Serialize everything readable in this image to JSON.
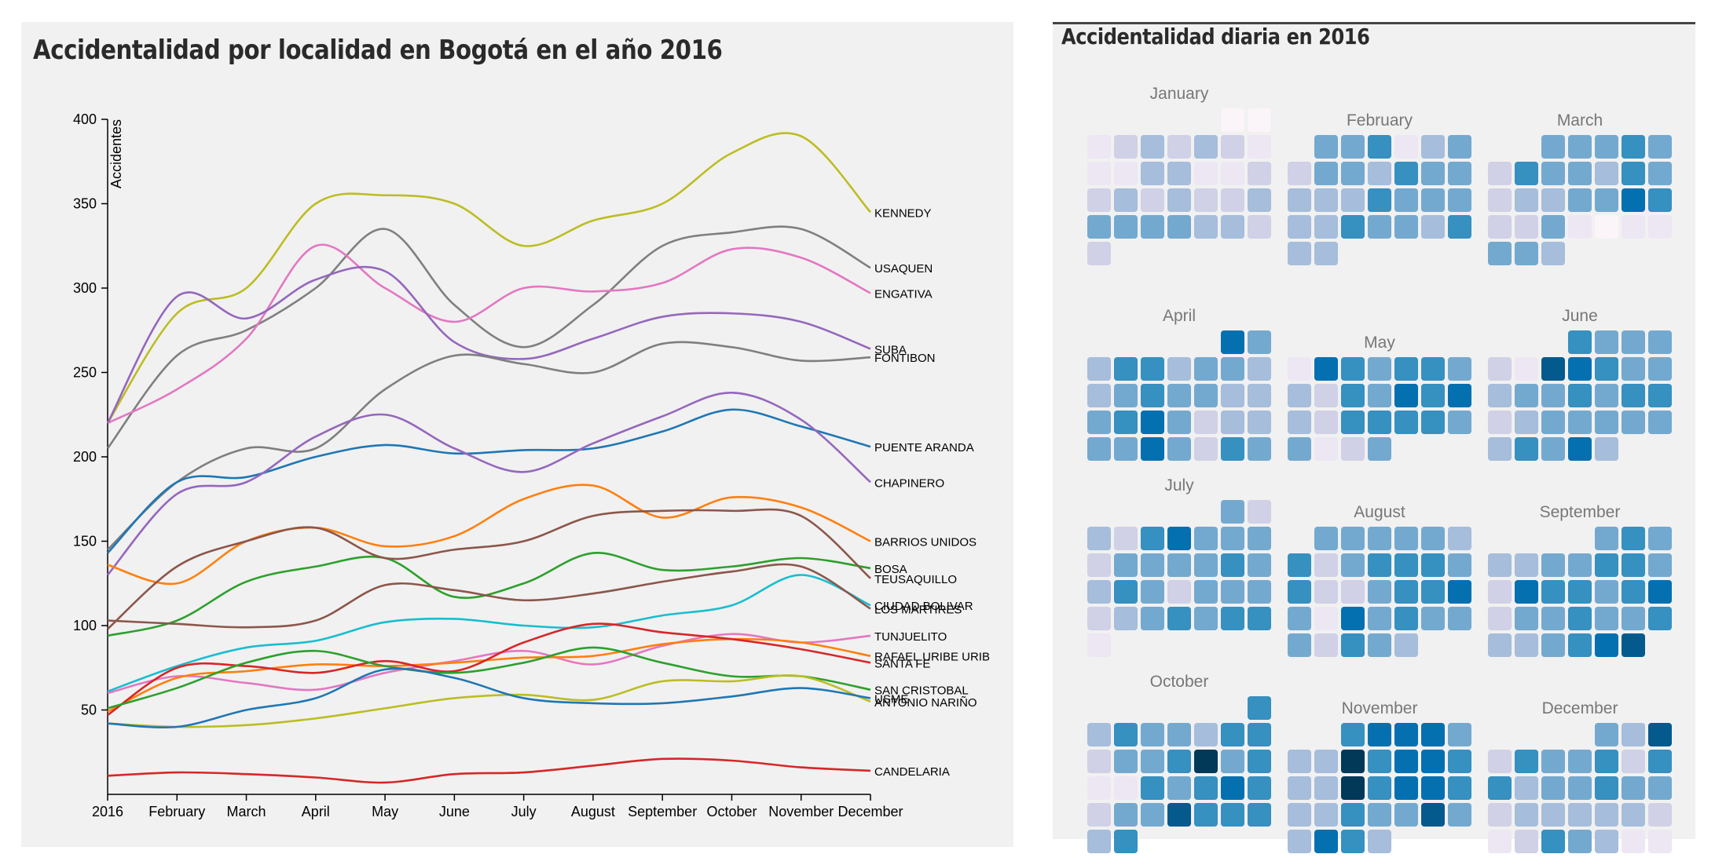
{
  "left_panel": {
    "title": "Accidentalidad por localidad en Bogotá en el año 2016"
  },
  "right_panel": {
    "title": "Accidentalidad diaria en 2016"
  },
  "chart_data": [
    {
      "type": "line",
      "title": "Accidentalidad por localidad en Bogotá en el año 2016",
      "ylabel": "Accidentes",
      "xlabel": "",
      "ylim": [
        0,
        400
      ],
      "yticks": [
        50,
        100,
        150,
        200,
        250,
        300,
        350,
        400
      ],
      "categories": [
        "2016",
        "February",
        "March",
        "April",
        "May",
        "June",
        "July",
        "August",
        "September",
        "October",
        "November",
        "December"
      ],
      "grid": false,
      "legend": "labels at line ends (right)",
      "series": [
        {
          "name": "KENNEDY",
          "color": "#bcbd22",
          "values": [
            220,
            285,
            300,
            350,
            355,
            350,
            325,
            340,
            350,
            380,
            390,
            345
          ]
        },
        {
          "name": "USAQUEN",
          "color": "#7f7f7f",
          "values": [
            205,
            260,
            275,
            300,
            335,
            290,
            265,
            290,
            325,
            333,
            335,
            312
          ]
        },
        {
          "name": "ENGATIVA",
          "color": "#e377c2",
          "values": [
            220,
            240,
            270,
            325,
            300,
            280,
            300,
            298,
            303,
            323,
            318,
            297
          ]
        },
        {
          "name": "SUBA",
          "color": "#9467bd",
          "values": [
            220,
            295,
            282,
            305,
            310,
            268,
            258,
            270,
            283,
            285,
            280,
            264
          ]
        },
        {
          "name": "FONTIBON",
          "color": "#7f7f7f",
          "values": [
            145,
            185,
            205,
            205,
            240,
            260,
            255,
            250,
            267,
            265,
            257,
            259
          ]
        },
        {
          "name": "PUENTE ARANDA",
          "color": "#1f77b4",
          "values": [
            143,
            185,
            188,
            200,
            207,
            202,
            204,
            205,
            215,
            228,
            218,
            206
          ]
        },
        {
          "name": "CHAPINERO",
          "color": "#9467bd",
          "values": [
            130,
            178,
            185,
            212,
            225,
            205,
            191,
            208,
            224,
            238,
            222,
            185
          ]
        },
        {
          "name": "BARRIOS UNIDOS",
          "color": "#ff7f0e",
          "values": [
            136,
            125,
            150,
            158,
            147,
            153,
            175,
            183,
            164,
            176,
            170,
            150
          ]
        },
        {
          "name": "BOSA",
          "color": "#2ca02c",
          "values": [
            94,
            103,
            126,
            135,
            140,
            117,
            125,
            143,
            133,
            135,
            140,
            134
          ]
        },
        {
          "name": "TEUSAQUILLO",
          "color": "#8c564b",
          "values": [
            98,
            135,
            150,
            158,
            140,
            145,
            150,
            165,
            168,
            168,
            165,
            128
          ]
        },
        {
          "name": "CIUDAD BOLIVAR",
          "color": "#17becf",
          "values": [
            61,
            76,
            87,
            91,
            102,
            104,
            100,
            99,
            106,
            112,
            130,
            112
          ]
        },
        {
          "name": "LOS MARTIRES",
          "color": "#8c564b",
          "values": [
            103,
            101,
            99,
            103,
            124,
            121,
            115,
            119,
            126,
            132,
            135,
            110
          ]
        },
        {
          "name": "TUNJUELITO",
          "color": "#e377c2",
          "values": [
            60,
            70,
            66,
            62,
            72,
            79,
            85,
            77,
            88,
            95,
            90,
            94
          ]
        },
        {
          "name": "RAFAEL URIBE URIB",
          "color": "#ff7f0e",
          "values": [
            49,
            69,
            73,
            77,
            76,
            78,
            81,
            82,
            89,
            92,
            90,
            82
          ]
        },
        {
          "name": "SANTA FE",
          "color": "#d62728",
          "values": [
            47,
            75,
            76,
            72,
            79,
            73,
            90,
            101,
            96,
            92,
            86,
            78
          ]
        },
        {
          "name": "SAN CRISTOBAL",
          "color": "#2ca02c",
          "values": [
            51,
            63,
            78,
            85,
            76,
            72,
            78,
            87,
            78,
            70,
            70,
            62
          ]
        },
        {
          "name": "ANTONIO NARIÑO",
          "color": "#bcbd22",
          "values": [
            42,
            40,
            41,
            45,
            51,
            57,
            59,
            56,
            67,
            67,
            70,
            55
          ]
        },
        {
          "name": "USME",
          "color": "#1f77b4",
          "values": [
            42,
            40,
            50,
            57,
            74,
            69,
            57,
            54,
            54,
            58,
            63,
            57
          ]
        },
        {
          "name": "CANDELARIA",
          "color": "#d62728",
          "values": [
            11,
            13,
            12,
            10,
            7,
            12,
            13,
            17,
            21,
            20,
            16,
            14
          ]
        }
      ]
    },
    {
      "type": "heatmap",
      "title": "Accidentalidad diaria en 2016",
      "description_units": "daily accident intensity, 1 (lowest) to 9 (highest), one value per day",
      "color_scale": [
        "#fbf4f9",
        "#ece7f2",
        "#d0d1e6",
        "#a6bddb",
        "#74a9cf",
        "#3690c0",
        "#0570b0",
        "#045a8d",
        "#023858"
      ],
      "months": [
        {
          "name": "January",
          "start_weekday": 5,
          "values": [
            1,
            1,
            2,
            3,
            4,
            3,
            4,
            3,
            2,
            2,
            2,
            4,
            4,
            2,
            2,
            3,
            3,
            4,
            3,
            4,
            3,
            3,
            4,
            5,
            5,
            5,
            5,
            4,
            4,
            3,
            3
          ]
        },
        {
          "name": "February",
          "start_weekday": 1,
          "values": [
            5,
            5,
            6,
            2,
            4,
            5,
            3,
            5,
            5,
            4,
            6,
            5,
            5,
            4,
            4,
            4,
            6,
            5,
            5,
            5,
            4,
            4,
            6,
            5,
            5,
            4,
            6,
            4,
            4
          ]
        },
        {
          "name": "March",
          "start_weekday": 2,
          "values": [
            5,
            5,
            5,
            6,
            5,
            3,
            6,
            5,
            5,
            4,
            6,
            5,
            3,
            4,
            4,
            5,
            5,
            7,
            6,
            3,
            3,
            5,
            2,
            1,
            2,
            2,
            5,
            5,
            4
          ]
        },
        {
          "name": "April",
          "start_weekday": 5,
          "values": [
            7,
            5,
            4,
            6,
            6,
            4,
            5,
            5,
            4,
            4,
            5,
            6,
            5,
            5,
            4,
            4,
            5,
            6,
            7,
            5,
            3,
            4,
            4,
            5,
            5,
            7,
            5,
            3,
            6,
            5
          ]
        },
        {
          "name": "May",
          "start_weekday": 0,
          "values": [
            2,
            7,
            6,
            5,
            6,
            6,
            5,
            4,
            3,
            6,
            5,
            7,
            6,
            7,
            4,
            3,
            6,
            6,
            6,
            6,
            5,
            5,
            2,
            3,
            5
          ]
        },
        {
          "name": "June",
          "start_weekday": 3,
          "values": [
            6,
            5,
            5,
            5,
            3,
            2,
            8,
            7,
            6,
            5,
            5,
            4,
            5,
            5,
            6,
            5,
            6,
            6,
            3,
            4,
            5,
            5,
            5,
            5,
            5,
            4,
            6,
            5,
            7,
            4
          ]
        },
        {
          "name": "July",
          "start_weekday": 5,
          "values": [
            5,
            3,
            4,
            3,
            6,
            7,
            5,
            5,
            5,
            3,
            5,
            5,
            5,
            5,
            6,
            5,
            4,
            6,
            5,
            3,
            5,
            5,
            5,
            3,
            4,
            5,
            6,
            5,
            6,
            6,
            2
          ]
        },
        {
          "name": "August",
          "start_weekday": 1,
          "values": [
            5,
            5,
            5,
            5,
            5,
            4,
            6,
            3,
            5,
            6,
            6,
            6,
            5,
            6,
            3,
            3,
            5,
            6,
            6,
            7,
            5,
            2,
            7,
            5,
            6,
            5,
            5,
            5,
            3,
            6,
            5,
            4
          ]
        },
        {
          "name": "September",
          "start_weekday": 4,
          "values": [
            5,
            6,
            5,
            4,
            4,
            5,
            5,
            6,
            6,
            5,
            3,
            7,
            6,
            6,
            5,
            6,
            7,
            3,
            5,
            5,
            6,
            5,
            5,
            6,
            4,
            4,
            5,
            6,
            7,
            8
          ]
        },
        {
          "name": "October",
          "start_weekday": 6,
          "values": [
            6,
            4,
            6,
            5,
            5,
            4,
            6,
            6,
            3,
            5,
            5,
            6,
            9,
            5,
            6,
            2,
            2,
            6,
            5,
            6,
            7,
            6,
            3,
            5,
            5,
            8,
            6,
            6,
            6,
            4,
            6
          ]
        },
        {
          "name": "November",
          "start_weekday": 2,
          "values": [
            6,
            7,
            7,
            7,
            5,
            4,
            4,
            9,
            6,
            7,
            7,
            6,
            4,
            4,
            9,
            6,
            7,
            7,
            6,
            4,
            4,
            6,
            5,
            5,
            8,
            5,
            4,
            7,
            6,
            4
          ]
        },
        {
          "name": "December",
          "start_weekday": 4,
          "values": [
            5,
            4,
            8,
            3,
            6,
            5,
            5,
            6,
            3,
            6,
            6,
            4,
            5,
            5,
            6,
            5,
            5,
            3,
            4,
            4,
            4,
            4,
            4,
            3,
            2,
            3,
            6,
            5,
            4,
            2,
            2
          ]
        }
      ]
    }
  ]
}
